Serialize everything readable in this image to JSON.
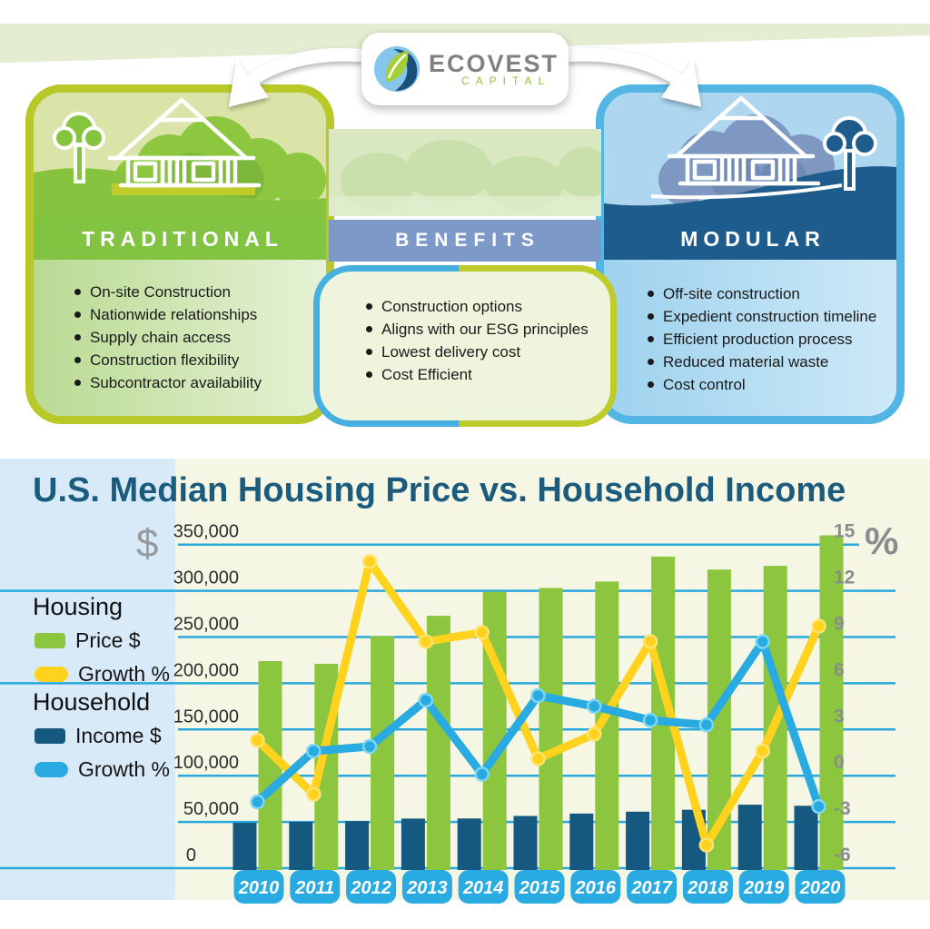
{
  "brand": {
    "name": "ECOVEST",
    "subname": "CAPITAL"
  },
  "comparison": {
    "left": {
      "title": "TRADITIONAL",
      "items": [
        "On-site Construction",
        "Nationwide relationships",
        "Supply chain access",
        "Construction flexibility",
        "Subcontractor availability"
      ]
    },
    "middle": {
      "title": "BENEFITS",
      "items": [
        "Construction options",
        "Aligns with our ESG principles",
        "Lowest delivery cost",
        "Cost Efficient"
      ]
    },
    "right": {
      "title": "MODULAR",
      "items": [
        "Off-site construction",
        "Expedient construction timeline",
        "Efficient production process",
        "Reduced material waste",
        "Cost control"
      ]
    }
  },
  "chart": {
    "title": "U.S. Median Housing Price vs. Household Income",
    "dollar_symbol": "$",
    "percent_symbol": "%",
    "legend": {
      "housing_label": "Housing",
      "housing_price_label": "Price $",
      "housing_growth_label": "Growth %",
      "household_label": "Household",
      "household_income_label": "Income $",
      "household_growth_label": "Growth %"
    }
  },
  "chart_data": {
    "type": "bar+line-combo",
    "title": "U.S. Median Housing Price vs. Household Income",
    "categories": [
      "2010",
      "2011",
      "2012",
      "2013",
      "2014",
      "2015",
      "2016",
      "2017",
      "2018",
      "2019",
      "2020"
    ],
    "series": [
      {
        "name": "Housing Price $",
        "type": "bar",
        "axis": "left ($)",
        "color": "#8CC63E",
        "values": [
          224000,
          221000,
          251000,
          273000,
          299000,
          303000,
          310000,
          337000,
          323000,
          327000,
          360000
        ]
      },
      {
        "name": "Household Income $",
        "type": "bar",
        "axis": "left ($)",
        "color": "#155880",
        "values": [
          49000,
          50100,
          51000,
          53600,
          53700,
          56500,
          59000,
          61100,
          63200,
          68700,
          67500
        ]
      },
      {
        "name": "Housing Price Growth %",
        "type": "line",
        "axis": "right (%)",
        "color": "#FFD21E",
        "values": [
          2.3,
          -1.2,
          13.9,
          8.7,
          9.3,
          1.1,
          2.7,
          8.7,
          -4.5,
          1.6,
          9.7
        ]
      },
      {
        "name": "Household Income Growth %",
        "type": "line",
        "axis": "right (%)",
        "color": "#29ABE2",
        "values": [
          -1.7,
          1.6,
          1.9,
          4.9,
          0.1,
          5.2,
          4.5,
          3.6,
          3.3,
          8.7,
          -2.0
        ]
      }
    ],
    "left_axis": {
      "symbol": "$",
      "min": 0,
      "max": 350000,
      "step": 50000,
      "ticks": [
        {
          "label": "350,000",
          "value": 350000
        },
        {
          "label": "300,000",
          "value": 300000
        },
        {
          "label": "250,000",
          "value": 250000
        },
        {
          "label": "200,000",
          "value": 200000
        },
        {
          "label": "150,000",
          "value": 150000
        },
        {
          "label": "100,000",
          "value": 100000
        },
        {
          "label": "50,000",
          "value": 50000
        },
        {
          "label": "0",
          "value": 0
        }
      ]
    },
    "right_axis": {
      "symbol": "%",
      "min": -6,
      "max": 15,
      "step": 3,
      "ticks": [
        {
          "label": "15",
          "value": 15
        },
        {
          "label": "12",
          "value": 12
        },
        {
          "label": "9",
          "value": 9
        },
        {
          "label": "6",
          "value": 6
        },
        {
          "label": "3",
          "value": 3
        },
        {
          "label": "0",
          "value": 0
        },
        {
          "label": "-3",
          "value": -3
        },
        {
          "label": "-6",
          "value": -6
        }
      ]
    },
    "grid": true,
    "legend_position": "left"
  },
  "colors": {
    "brand_green": "#8CC63E",
    "brand_yellow": "#FFD21E",
    "brand_navy": "#155880",
    "brand_light_blue": "#29ABE2",
    "gridline_blue": "#29A8DE",
    "title_blue": "#1B5B7E",
    "chart_bg": "#F5F7E4",
    "legend_band_bg": "#D8EAF8",
    "traditional_border": "#B8C829",
    "modular_border": "#53B5E4",
    "benefits_strip": "#7D99C8"
  }
}
